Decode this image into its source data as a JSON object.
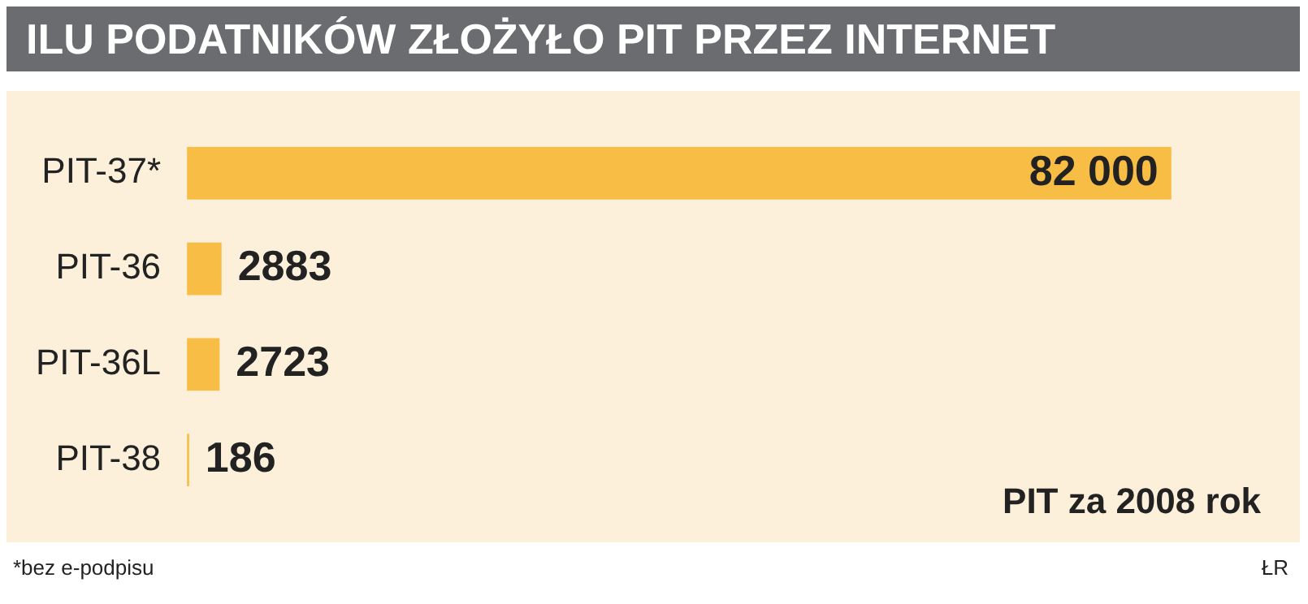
{
  "chart_data": {
    "type": "bar",
    "orientation": "horizontal",
    "title": "ILU PODATNIKÓW ZŁOŻYŁO PIT PRZEZ INTERNET",
    "categories": [
      "PIT-37*",
      "PIT-36",
      "PIT-36L",
      "PIT-38"
    ],
    "values": [
      82000,
      2883,
      2723,
      186
    ],
    "color": "#f8bd45",
    "data_labels": true,
    "legend": false,
    "annotations": [
      "PIT za 2008 rok",
      "*bez e-podpisu",
      "ŁR"
    ]
  }
}
